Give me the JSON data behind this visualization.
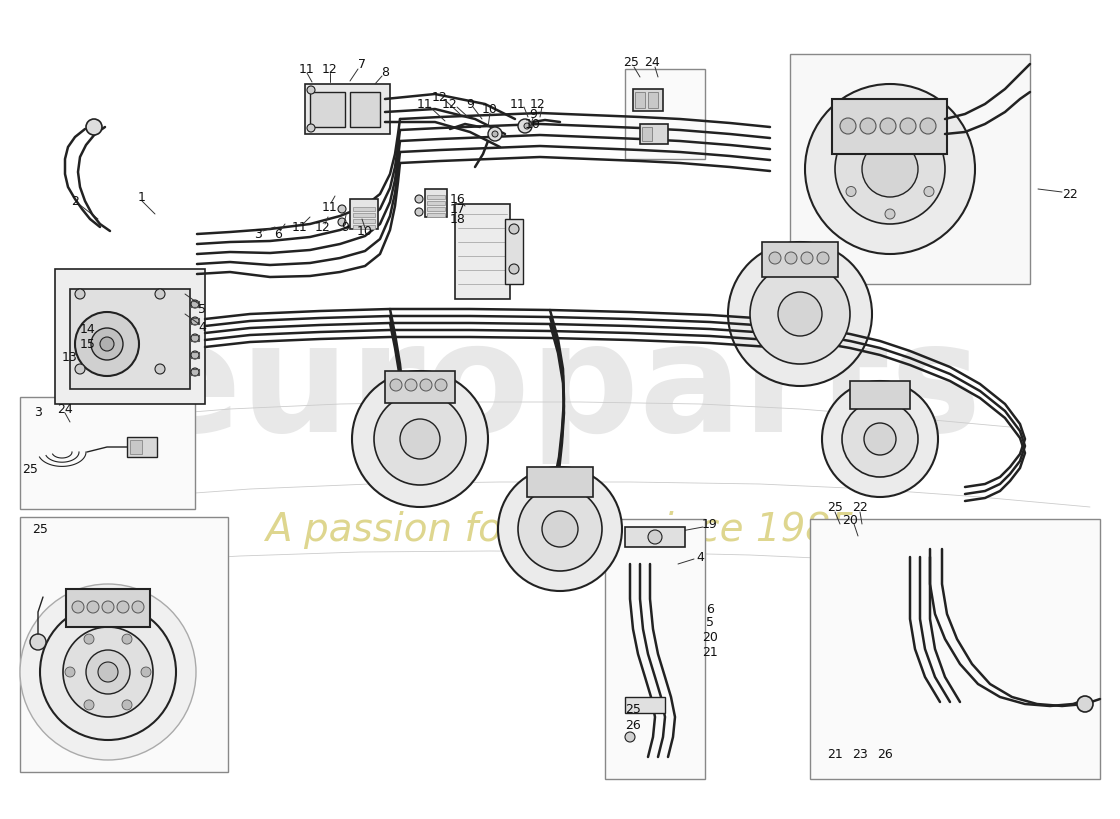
{
  "bg": "#ffffff",
  "lc": "#222222",
  "lc_light": "#888888",
  "watermark1": "europarts",
  "watermark2": "A passion for parts since 1985",
  "wm_color1": "#cccccc",
  "wm_color2": "#d4c96a",
  "fig_w": 11.0,
  "fig_h": 8.0,
  "dpi": 100
}
